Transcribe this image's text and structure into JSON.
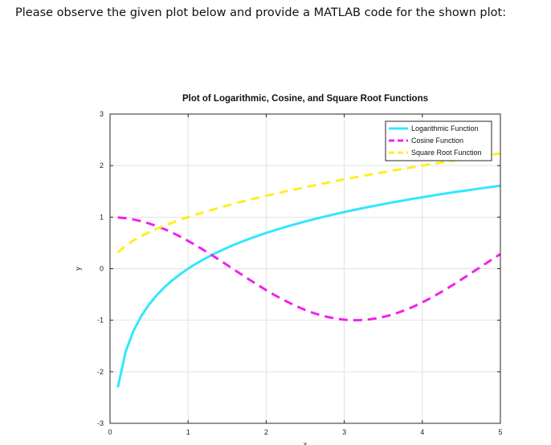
{
  "question": {
    "text": "Please observe the given plot below and provide a MATLAB code for the shown plot:"
  },
  "chart_data": {
    "type": "line",
    "title": "Plot of Logarithmic, Cosine, and Square Root Functions",
    "xlabel": "x",
    "ylabel": "y",
    "xlim": [
      0,
      5
    ],
    "ylim": [
      -3,
      3
    ],
    "xticks": [
      "0",
      "1",
      "2",
      "3",
      "4",
      "5"
    ],
    "yticks": [
      "-3",
      "-2",
      "-1",
      "0",
      "1",
      "2",
      "3"
    ],
    "grid": true,
    "legend_position": "top-right",
    "x": [
      0.1,
      0.2,
      0.3,
      0.4,
      0.5,
      0.6,
      0.7,
      0.8,
      0.9,
      1.0,
      1.1,
      1.2,
      1.3,
      1.4,
      1.5,
      1.6,
      1.7,
      1.8,
      1.9,
      2.0,
      2.1,
      2.2,
      2.3,
      2.4,
      2.5,
      2.6,
      2.7,
      2.8,
      2.9,
      3.0,
      3.1,
      3.2,
      3.3,
      3.4,
      3.5,
      3.6,
      3.7,
      3.8,
      3.9,
      4.0,
      4.1,
      4.2,
      4.3,
      4.4,
      4.5,
      4.6,
      4.7,
      4.8,
      4.9,
      5.0
    ],
    "series": [
      {
        "name": "Logarithmic Function",
        "color": "#33e6ff",
        "style": "solid",
        "values": [
          -2.303,
          -1.609,
          -1.204,
          -0.916,
          -0.693,
          -0.511,
          -0.357,
          -0.223,
          -0.105,
          0.0,
          0.095,
          0.182,
          0.262,
          0.336,
          0.405,
          0.47,
          0.531,
          0.588,
          0.642,
          0.693,
          0.742,
          0.788,
          0.833,
          0.875,
          0.916,
          0.956,
          0.993,
          1.03,
          1.065,
          1.099,
          1.131,
          1.163,
          1.194,
          1.224,
          1.253,
          1.281,
          1.308,
          1.335,
          1.361,
          1.386,
          1.411,
          1.435,
          1.459,
          1.482,
          1.504,
          1.526,
          1.548,
          1.569,
          1.589,
          1.609
        ]
      },
      {
        "name": "Cosine Function",
        "color": "#ee22ee",
        "style": "dashed",
        "values": [
          0.995,
          0.98,
          0.955,
          0.921,
          0.878,
          0.825,
          0.765,
          0.697,
          0.622,
          0.54,
          0.454,
          0.362,
          0.267,
          0.17,
          0.071,
          -0.029,
          -0.129,
          -0.227,
          -0.323,
          -0.416,
          -0.505,
          -0.589,
          -0.666,
          -0.737,
          -0.801,
          -0.857,
          -0.904,
          -0.942,
          -0.971,
          -0.99,
          -0.999,
          -0.998,
          -0.987,
          -0.967,
          -0.936,
          -0.897,
          -0.848,
          -0.791,
          -0.726,
          -0.654,
          -0.575,
          -0.49,
          -0.401,
          -0.307,
          -0.211,
          -0.112,
          -0.012,
          0.087,
          0.187,
          0.284
        ]
      },
      {
        "name": "Square Root Function",
        "color": "#ffee22",
        "style": "dashed",
        "values": [
          0.316,
          0.447,
          0.548,
          0.632,
          0.707,
          0.775,
          0.837,
          0.894,
          0.949,
          1.0,
          1.049,
          1.095,
          1.14,
          1.183,
          1.225,
          1.265,
          1.304,
          1.342,
          1.378,
          1.414,
          1.449,
          1.483,
          1.517,
          1.549,
          1.581,
          1.612,
          1.643,
          1.673,
          1.703,
          1.732,
          1.761,
          1.789,
          1.817,
          1.844,
          1.871,
          1.897,
          1.924,
          1.949,
          1.975,
          2.0,
          2.025,
          2.049,
          2.074,
          2.098,
          2.121,
          2.145,
          2.168,
          2.191,
          2.214,
          2.236
        ]
      }
    ]
  }
}
